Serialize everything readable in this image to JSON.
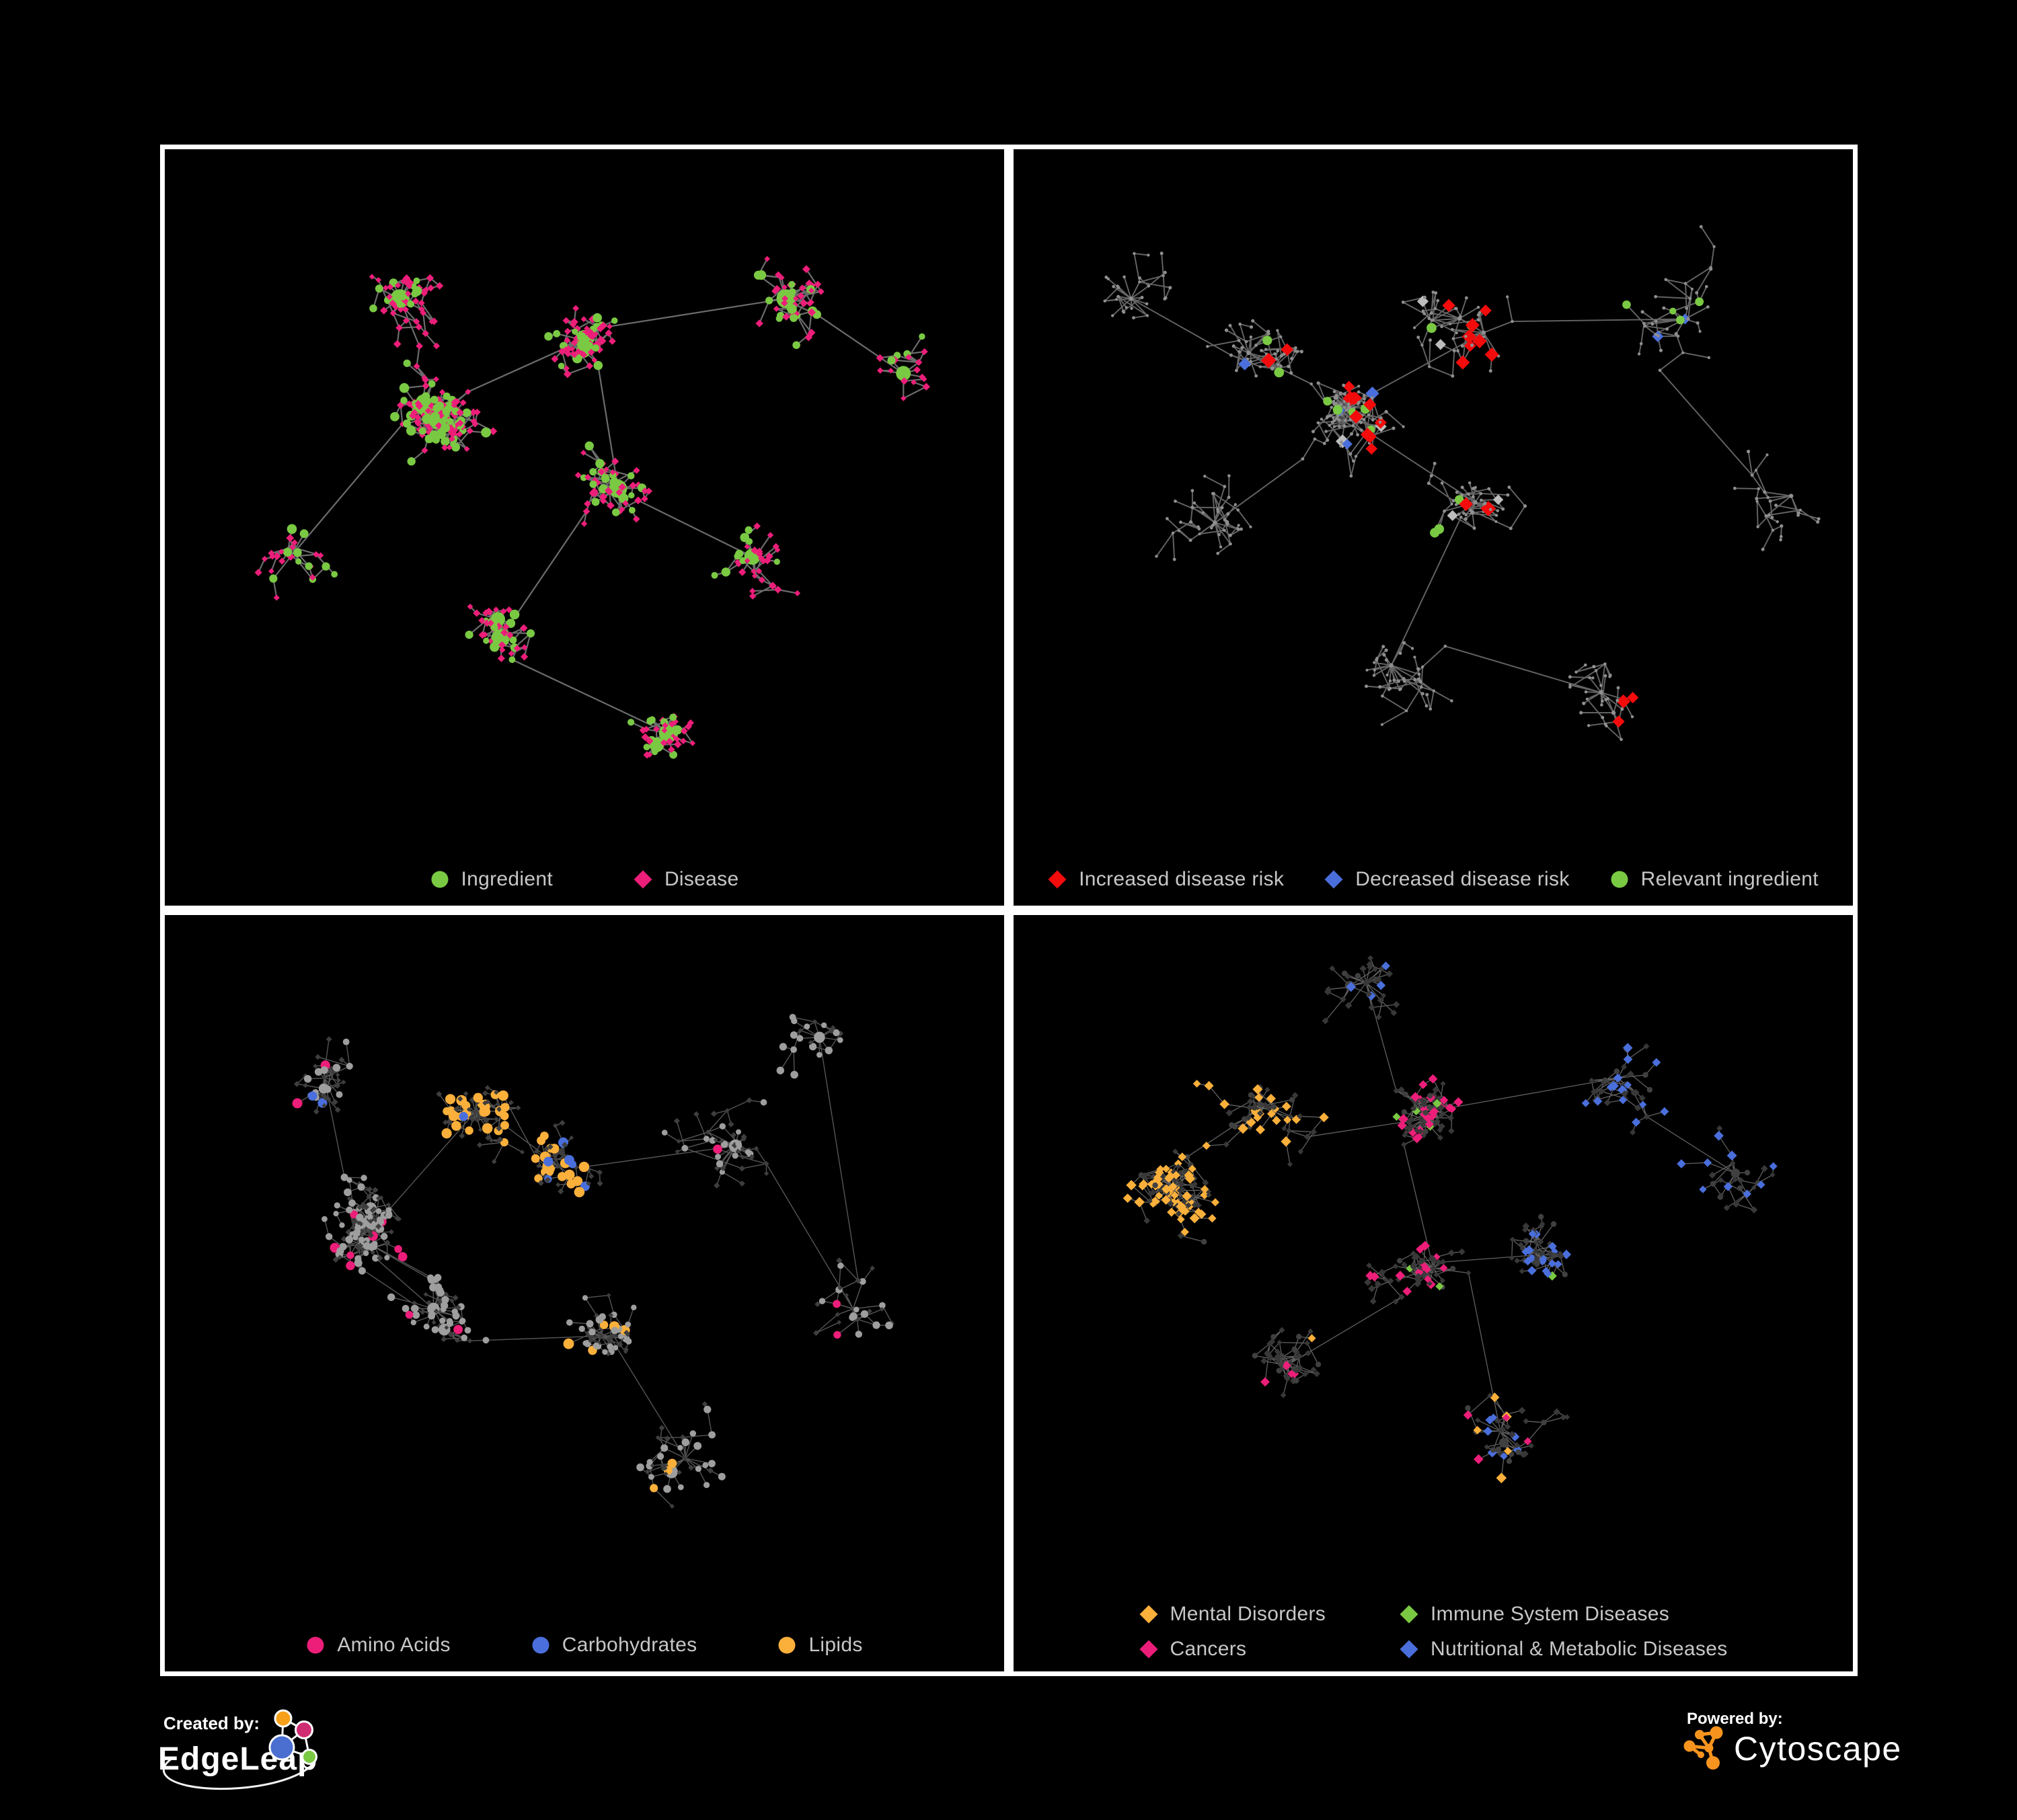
{
  "figure": {
    "background": "#000000",
    "panel_border_color": "#ffffff",
    "legend_text_color": "#c7c7c7"
  },
  "palette": {
    "green": "#7ac943",
    "magenta": "#ed1e79",
    "red": "#f40b0b",
    "blue": "#4a6fdc",
    "amber": "#fbb03b",
    "silver": "#bdbdbd",
    "base_gray": "#8f8f8f",
    "dark_gray": "#383838",
    "light_gray_node": "#9e9e9e"
  },
  "branding": {
    "created_by_label": "Created by:",
    "created_by_name": "EdgeLeap",
    "powered_by_label": "Powered by:",
    "powered_by_name": "Cytoscape"
  },
  "chart_data": [
    {
      "type": "network",
      "panel": "top-left",
      "description": "Ingredient-disease association network; green circles are ingredients, pink diamonds are diseases",
      "legend": [
        {
          "label": "Ingredient",
          "shape": "circle",
          "color": "#7ac943"
        },
        {
          "label": "Disease",
          "shape": "diamond",
          "color": "#ed1e79"
        }
      ],
      "approx_node_count": 545,
      "category_share": {
        "Ingredient": 0.3,
        "Disease": 0.7
      },
      "edge_color": "#7b7b7b"
    },
    {
      "type": "network",
      "panel": "top-right",
      "description": "Same network in gray with disease-risk highlights",
      "legend": [
        {
          "label": "Increased disease risk",
          "shape": "diamond",
          "color": "#f40b0b"
        },
        {
          "label": "Decreased disease risk",
          "shape": "diamond",
          "color": "#4a6fdc"
        },
        {
          "label": "Relevant ingredient",
          "shape": "circle",
          "color": "#7ac943"
        }
      ],
      "approx_node_count": 525,
      "highlight_counts": {
        "Increased disease risk": 25,
        "Decreased disease risk": 6,
        "Relevant ingredient": 16,
        "Unclassified association": 6
      },
      "edge_color": "#6a6a6a"
    },
    {
      "type": "network",
      "panel": "bottom-left",
      "description": "Ingredient classes network; circles are ingredients colored by chemical class, small dark diamonds are diseases",
      "legend": [
        {
          "label": "Amino Acids",
          "shape": "circle",
          "color": "#ed1e79"
        },
        {
          "label": "Carbohydrates",
          "shape": "circle",
          "color": "#4a6fdc"
        },
        {
          "label": "Lipids",
          "shape": "circle",
          "color": "#fbb03b"
        }
      ],
      "approx_node_count": 550,
      "highlight_counts": {
        "Amino Acids": 23,
        "Carbohydrates": 9,
        "Lipids": 54
      },
      "edge_color": "#a9a9a9"
    },
    {
      "type": "network",
      "panel": "bottom-right",
      "description": "Disease classes network; diamonds are diseases colored by disease category",
      "legend": [
        {
          "label": "Mental Disorders",
          "shape": "diamond",
          "color": "#fbb03b"
        },
        {
          "label": "Immune System Diseases",
          "shape": "diamond",
          "color": "#7ac943"
        },
        {
          "label": "Cancers",
          "shape": "diamond",
          "color": "#ed1e79"
        },
        {
          "label": "Nutritional & Metabolic Diseases",
          "shape": "diamond",
          "color": "#4a6fdc"
        }
      ],
      "legend_layout": "two-column",
      "approx_node_count": 560,
      "highlight_counts": {
        "Mental Disorders": 80,
        "Immune System Diseases": 7,
        "Cancers": 44,
        "Nutritional & Metabolic Diseases": 50
      },
      "edge_color": "#a0a0a0"
    }
  ]
}
